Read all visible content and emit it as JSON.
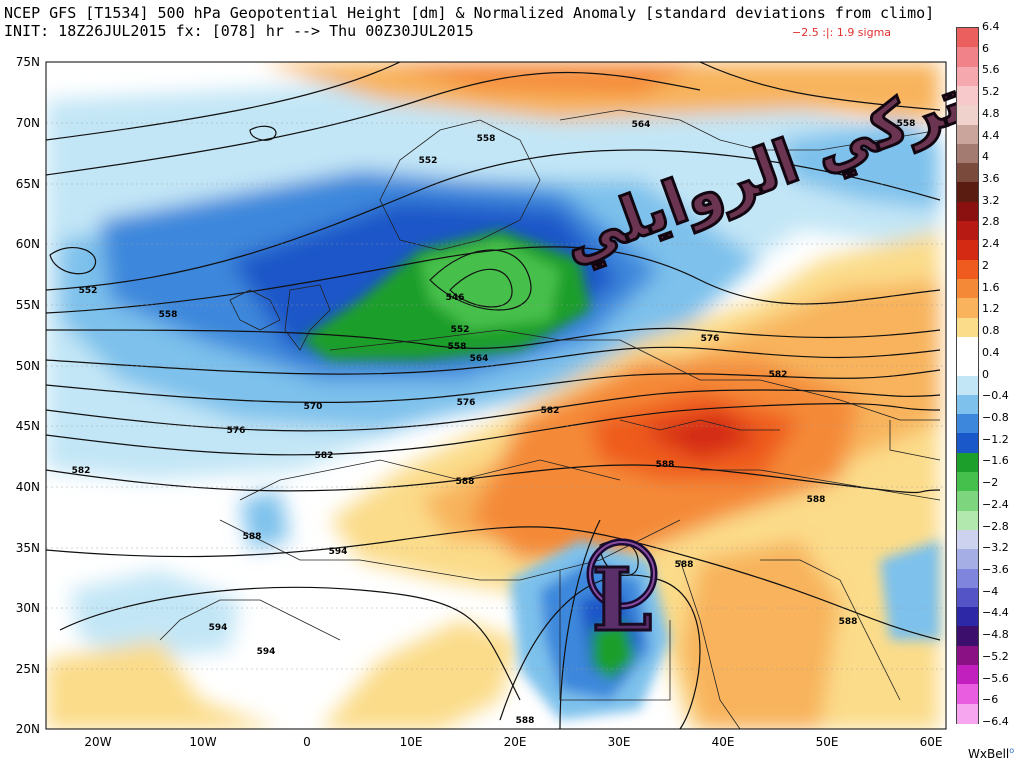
{
  "header": {
    "line1": "NCEP GFS [T1534] 500 hPa Geopotential Height [dm] & Normalized Anomaly [standard deviations from climo]",
    "line2": "INIT: 18Z26JUL2015 fx: [078] hr --> Thu 00Z30JUL2015",
    "sigma_range": "−2.5 :|:    1.9 sigma"
  },
  "axes": {
    "lat_labels": [
      "75N",
      "70N",
      "65N",
      "60N",
      "55N",
      "50N",
      "45N",
      "40N",
      "35N",
      "30N",
      "25N",
      "20N"
    ],
    "lon_labels": [
      "20W",
      "10W",
      "0",
      "10E",
      "20E",
      "30E",
      "40E",
      "50E",
      "60E"
    ]
  },
  "contour_labels": [
    "552",
    "558",
    "564",
    "570",
    "576",
    "582",
    "588",
    "594",
    "546",
    "552",
    "558",
    "564",
    "576",
    "582",
    "588",
    "588",
    "588",
    "594",
    "594",
    "588",
    "588",
    "588",
    "558",
    "564",
    "558"
  ],
  "low_marker": "L",
  "watermark_text": "تركي الروايلي",
  "colorbar": {
    "labels": [
      "6.4",
      "6",
      "5.6",
      "5.2",
      "4.8",
      "4.4",
      "4",
      "3.6",
      "3.2",
      "2.8",
      "2.4",
      "2",
      "1.6",
      "1.2",
      "0.8",
      "0.4",
      "0",
      "−0.4",
      "−0.8",
      "−1.2",
      "−1.6",
      "−2",
      "−2.4",
      "−2.8",
      "−3.2",
      "−3.6",
      "−4",
      "−4.4",
      "−4.8",
      "−5.2",
      "−5.6",
      "−6",
      "−6.4"
    ],
    "colors": [
      "#ec5f5f",
      "#f1828a",
      "#f5a8ad",
      "#f8c9cb",
      "#f0d2cc",
      "#c9a59b",
      "#a37b70",
      "#7a4a3c",
      "#5a1b10",
      "#8b1010",
      "#b71a12",
      "#d42a14",
      "#ef5b1e",
      "#f48a38",
      "#f8b35c",
      "#fbdc8a",
      "#ffffff",
      "#ffffff",
      "#c3e6f6",
      "#7dc1ec",
      "#3d88dc",
      "#1a57c8",
      "#1c9f2b",
      "#46c04c",
      "#7dd67d",
      "#b2e8ad",
      "#cdd3ee",
      "#a6aee6",
      "#7f84dc",
      "#5454c6",
      "#2d28a6",
      "#3b0f6b",
      "#8a1183",
      "#c21fbf",
      "#e95ee0",
      "#f6a6ef"
    ]
  },
  "brand": "WxBell"
}
